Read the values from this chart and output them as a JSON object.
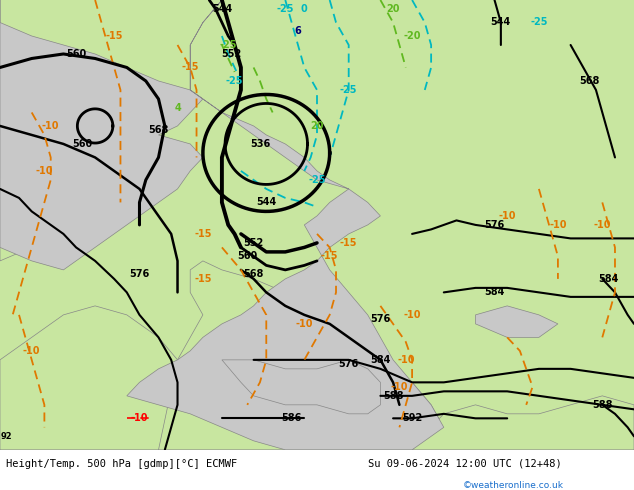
{
  "title_left": "Height/Temp. 500 hPa [gdmp][°C] ECMWF",
  "title_right": "Su 09-06-2024 12:00 UTC (12+48)",
  "watermark": "©weatheronline.co.uk",
  "fig_width": 6.34,
  "fig_height": 4.9,
  "dpi": 100,
  "bg_color": "#c8c8c8",
  "land_color": "#c8e6a0",
  "footer_bg": "#ffffff",
  "footer_fontsize": 7.5,
  "watermark_color": "#1a6fcc",
  "label_fontsize": 7
}
